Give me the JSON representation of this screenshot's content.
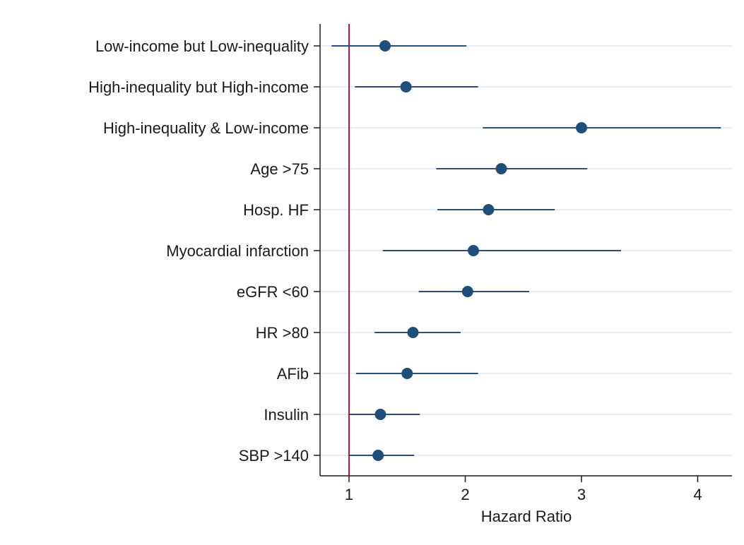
{
  "chart_data": {
    "type": "forest",
    "xlabel": "Hazard Ratio",
    "xlim": [
      0.75,
      4.3
    ],
    "xticks": [
      1,
      2,
      3,
      4
    ],
    "reference_line": 1,
    "grid": "horizontal",
    "colors": {
      "marker": "#1f4e79",
      "ci_line": "#2b5077",
      "reference": "#c0134a",
      "grid": "#e6eff3",
      "axis": "#1a1a1a"
    },
    "rows": [
      {
        "label": "Low-income but Low-inequality",
        "hr": 1.31,
        "lower": 0.85,
        "upper": 2.01
      },
      {
        "label": "High-inequality but High-income",
        "hr": 1.49,
        "lower": 1.05,
        "upper": 2.11
      },
      {
        "label": "High-inequality & Low-income",
        "hr": 3.0,
        "lower": 2.15,
        "upper": 4.2
      },
      {
        "label": "Age >75",
        "hr": 2.31,
        "lower": 1.75,
        "upper": 3.05
      },
      {
        "label": "Hosp. HF",
        "hr": 2.2,
        "lower": 1.76,
        "upper": 2.77
      },
      {
        "label": "Myocardial infarction",
        "hr": 2.07,
        "lower": 1.29,
        "upper": 3.34
      },
      {
        "label": "eGFR <60",
        "hr": 2.02,
        "lower": 1.6,
        "upper": 2.55
      },
      {
        "label": "HR >80",
        "hr": 1.55,
        "lower": 1.22,
        "upper": 1.96
      },
      {
        "label": "AFib",
        "hr": 1.5,
        "lower": 1.06,
        "upper": 2.11
      },
      {
        "label": "Insulin",
        "hr": 1.27,
        "lower": 1.0,
        "upper": 1.61
      },
      {
        "label": "SBP >140",
        "hr": 1.25,
        "lower": 1.0,
        "upper": 1.56
      }
    ]
  }
}
